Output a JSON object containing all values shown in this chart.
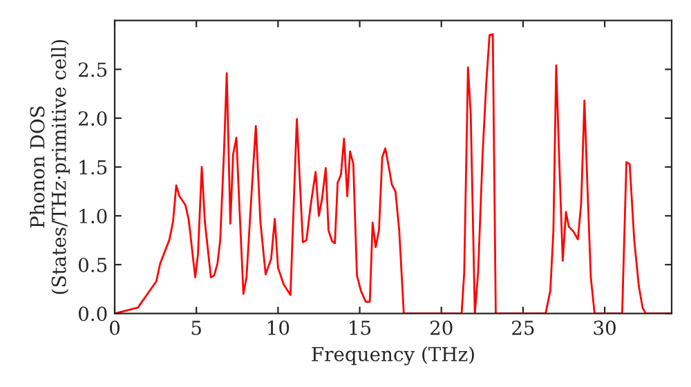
{
  "chart_data": {
    "type": "line",
    "xlabel": "Frequency (THz)",
    "ylabel": "Phonon DOS\n(States/THz·primitive cell)",
    "xlim": [
      0,
      34.1
    ],
    "ylim": [
      0,
      3.0
    ],
    "xticks": [
      0,
      5,
      10,
      15,
      20,
      25,
      30
    ],
    "yticks": [
      {
        "value": 0,
        "label": "0.0"
      },
      0.5,
      {
        "value": 1,
        "label": "1.0"
      },
      1.5,
      {
        "value": 2,
        "label": "2.0"
      },
      2.5
    ],
    "grid": false,
    "legend": false,
    "marker": "none",
    "line_style": "solid",
    "series": [
      {
        "color": "#ff0000",
        "x": [
          0,
          1.42,
          2.55,
          2.78,
          3.34,
          3.57,
          3.77,
          3.97,
          4.33,
          4.53,
          4.93,
          5.1,
          5.33,
          5.52,
          5.89,
          6.09,
          6.29,
          6.46,
          6.69,
          6.86,
          7.08,
          7.25,
          7.45,
          7.65,
          7.88,
          8.07,
          8.36,
          8.64,
          8.92,
          9.24,
          9.58,
          9.8,
          10.0,
          10.34,
          10.76,
          11.15,
          11.52,
          11.74,
          12.0,
          12.3,
          12.5,
          12.7,
          12.92,
          13.09,
          13.31,
          13.48,
          13.65,
          13.85,
          14.04,
          14.24,
          14.41,
          14.61,
          14.83,
          15.08,
          15.37,
          15.62,
          15.79,
          15.98,
          16.18,
          16.38,
          16.57,
          16.77,
          16.97,
          17.19,
          17.42,
          17.7,
          21.24,
          21.4,
          21.63,
          21.8,
          22.05,
          22.25,
          22.53,
          22.75,
          22.95,
          23.15,
          23.33,
          26.38,
          26.67,
          26.86,
          27.03,
          27.23,
          27.43,
          27.63,
          27.8,
          28.08,
          28.36,
          28.56,
          28.76,
          28.95,
          29.15,
          29.38,
          31.07,
          31.33,
          31.53,
          31.81,
          32.09,
          32.32,
          32.51,
          34.1
        ],
        "values": [
          0,
          0.06,
          0.33,
          0.51,
          0.75,
          0.94,
          1.31,
          1.2,
          1.11,
          0.96,
          0.37,
          0.61,
          1.5,
          0.94,
          0.37,
          0.39,
          0.51,
          0.75,
          1.65,
          2.46,
          0.92,
          1.63,
          1.8,
          1.04,
          0.2,
          0.37,
          1.18,
          1.92,
          0.94,
          0.4,
          0.56,
          0.97,
          0.47,
          0.3,
          0.19,
          1.99,
          0.73,
          0.75,
          1.11,
          1.45,
          1.0,
          1.18,
          1.49,
          0.85,
          0.74,
          0.72,
          1.34,
          1.42,
          1.79,
          1.2,
          1.66,
          1.53,
          0.39,
          0.23,
          0.12,
          0.12,
          0.93,
          0.68,
          0.85,
          1.6,
          1.69,
          1.51,
          1.32,
          1.25,
          0.85,
          0,
          0,
          0.42,
          2.52,
          2.03,
          0,
          0.42,
          1.65,
          2.36,
          2.85,
          2.86,
          0,
          0,
          0.23,
          0.85,
          2.54,
          1.51,
          0.54,
          1.04,
          0.89,
          0.84,
          0.76,
          1.13,
          2.18,
          1.27,
          0.37,
          0,
          0,
          1.55,
          1.53,
          0.75,
          0.28,
          0.06,
          0,
          0
        ]
      }
    ]
  }
}
